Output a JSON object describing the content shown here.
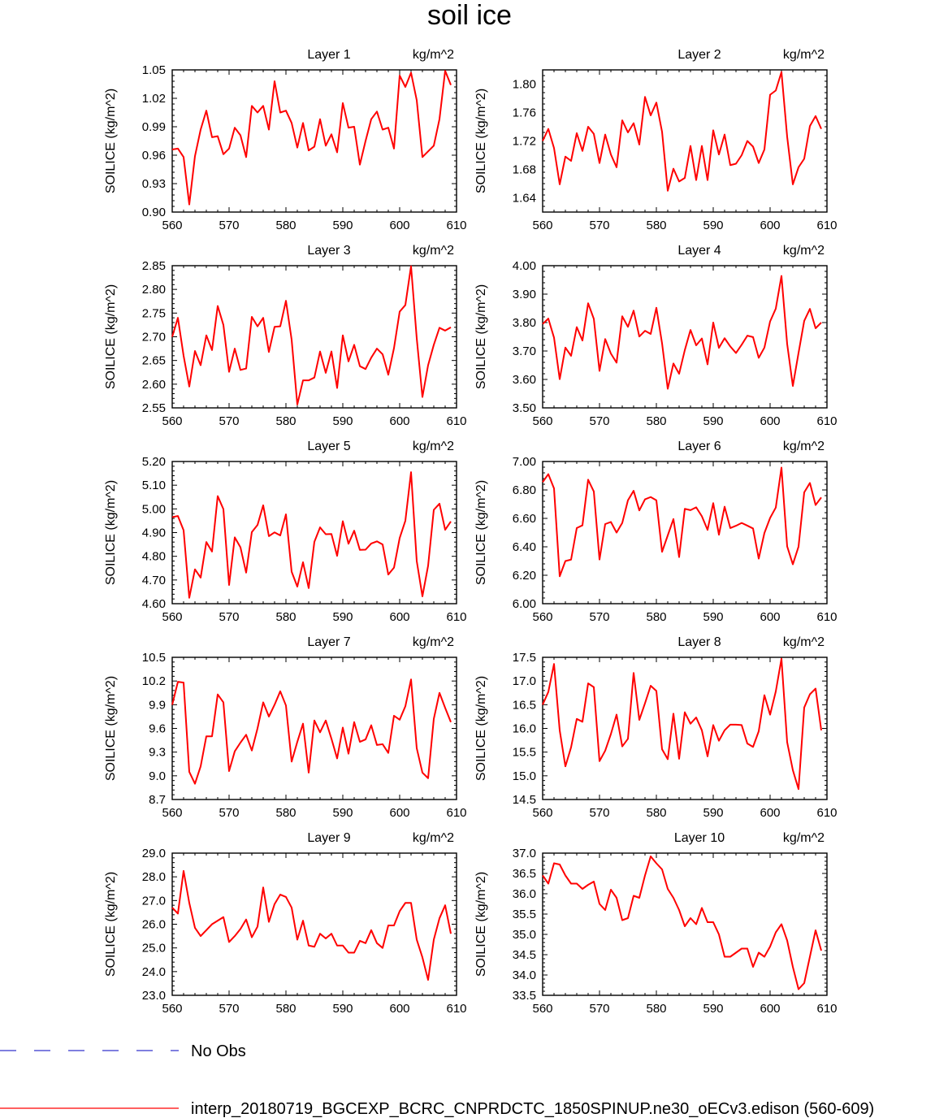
{
  "figure": {
    "title": "soil ice",
    "ylabel": "SOILICE  (kg/m^2)",
    "unit": "kg/m^2"
  },
  "legend": {
    "entries": [
      {
        "label": "No Obs",
        "color": "#3333cc",
        "style": "dashed"
      },
      {
        "label": "interp_20180719_BGCEXP_BCRC_CNPRDCTC_1850SPINUP.ne30_oECv3.edison (560-609)",
        "color": "#ff0000",
        "style": "solid"
      }
    ]
  },
  "chart_data": [
    {
      "type": "line",
      "title": "Layer 1",
      "unit": "kg/m^2",
      "ylabel": "SOILICE  (kg/m^2)",
      "x_start": 560,
      "xlim": [
        560,
        610
      ],
      "xticks": [
        560,
        570,
        580,
        590,
        600,
        610
      ],
      "ylim": [
        0.9,
        1.05
      ],
      "yticks": [
        0.9,
        0.93,
        0.96,
        0.99,
        1.02,
        1.05
      ],
      "ytick_decimals": 2,
      "series": [
        {
          "color": "#ff0000",
          "values": [
            0.966,
            0.967,
            0.958,
            0.908,
            0.959,
            0.987,
            1.007,
            0.979,
            0.98,
            0.961,
            0.967,
            0.989,
            0.981,
            0.958,
            1.012,
            1.005,
            1.012,
            0.987,
            1.038,
            1.005,
            1.007,
            0.994,
            0.968,
            0.994,
            0.965,
            0.969,
            0.998,
            0.97,
            0.982,
            0.963,
            1.015,
            0.989,
            0.99,
            0.95,
            0.975,
            0.998,
            1.006,
            0.987,
            0.989,
            0.967,
            1.044,
            1.032,
            1.047,
            1.018,
            0.958,
            0.964,
            0.97,
            0.998,
            1.049,
            1.034
          ]
        }
      ]
    },
    {
      "type": "line",
      "title": "Layer 2",
      "unit": "kg/m^2",
      "ylabel": "SOILICE  (kg/m^2)",
      "x_start": 560,
      "xlim": [
        560,
        610
      ],
      "xticks": [
        560,
        570,
        580,
        590,
        600,
        610
      ],
      "ylim": [
        1.62,
        1.82
      ],
      "yticks": [
        1.64,
        1.68,
        1.72,
        1.76,
        1.8
      ],
      "ytick_decimals": 2,
      "series": [
        {
          "color": "#ff0000",
          "values": [
            1.72,
            1.737,
            1.71,
            1.659,
            1.698,
            1.692,
            1.731,
            1.706,
            1.74,
            1.73,
            1.689,
            1.729,
            1.701,
            1.683,
            1.749,
            1.732,
            1.745,
            1.715,
            1.782,
            1.756,
            1.774,
            1.733,
            1.65,
            1.681,
            1.663,
            1.668,
            1.713,
            1.665,
            1.713,
            1.665,
            1.735,
            1.701,
            1.729,
            1.686,
            1.688,
            1.7,
            1.72,
            1.712,
            1.689,
            1.708,
            1.785,
            1.791,
            1.817,
            1.726,
            1.659,
            1.683,
            1.695,
            1.741,
            1.755,
            1.737
          ]
        }
      ]
    },
    {
      "type": "line",
      "title": "Layer 3",
      "unit": "kg/m^2",
      "ylabel": "SOILICE  (kg/m^2)",
      "x_start": 560,
      "xlim": [
        560,
        610
      ],
      "xticks": [
        560,
        570,
        580,
        590,
        600,
        610
      ],
      "ylim": [
        2.55,
        2.85
      ],
      "yticks": [
        2.55,
        2.6,
        2.65,
        2.7,
        2.75,
        2.8,
        2.85
      ],
      "ytick_decimals": 2,
      "series": [
        {
          "color": "#ff0000",
          "values": [
            2.7,
            2.74,
            2.66,
            2.595,
            2.67,
            2.64,
            2.703,
            2.672,
            2.765,
            2.725,
            2.626,
            2.675,
            2.63,
            2.633,
            2.742,
            2.722,
            2.74,
            2.668,
            2.721,
            2.722,
            2.776,
            2.694,
            2.557,
            2.608,
            2.608,
            2.614,
            2.669,
            2.624,
            2.669,
            2.592,
            2.703,
            2.648,
            2.683,
            2.638,
            2.632,
            2.656,
            2.675,
            2.663,
            2.62,
            2.676,
            2.753,
            2.767,
            2.849,
            2.697,
            2.573,
            2.64,
            2.683,
            2.719,
            2.713,
            2.72
          ]
        }
      ]
    },
    {
      "type": "line",
      "title": "Layer 4",
      "unit": "kg/m^2",
      "ylabel": "SOILICE  (kg/m^2)",
      "x_start": 560,
      "xlim": [
        560,
        610
      ],
      "xticks": [
        560,
        570,
        580,
        590,
        600,
        610
      ],
      "ylim": [
        3.5,
        4.0
      ],
      "yticks": [
        3.5,
        3.6,
        3.7,
        3.8,
        3.9,
        4.0
      ],
      "ytick_decimals": 2,
      "series": [
        {
          "color": "#ff0000",
          "values": [
            3.795,
            3.814,
            3.747,
            3.601,
            3.712,
            3.683,
            3.784,
            3.737,
            3.868,
            3.813,
            3.63,
            3.742,
            3.691,
            3.659,
            3.822,
            3.785,
            3.842,
            3.751,
            3.771,
            3.76,
            3.852,
            3.727,
            3.567,
            3.656,
            3.62,
            3.703,
            3.774,
            3.72,
            3.744,
            3.653,
            3.8,
            3.711,
            3.745,
            3.716,
            3.693,
            3.722,
            3.754,
            3.749,
            3.676,
            3.712,
            3.804,
            3.849,
            3.964,
            3.725,
            3.577,
            3.693,
            3.806,
            3.848,
            3.78,
            3.8
          ]
        }
      ]
    },
    {
      "type": "line",
      "title": "Layer 5",
      "unit": "kg/m^2",
      "ylabel": "SOILICE  (kg/m^2)",
      "x_start": 560,
      "xlim": [
        560,
        610
      ],
      "xticks": [
        560,
        570,
        580,
        590,
        600,
        610
      ],
      "ylim": [
        4.6,
        5.2
      ],
      "yticks": [
        4.6,
        4.7,
        4.8,
        4.9,
        5.0,
        5.1,
        5.2
      ],
      "ytick_decimals": 2,
      "series": [
        {
          "color": "#ff0000",
          "values": [
            4.965,
            4.97,
            4.91,
            4.625,
            4.745,
            4.71,
            4.86,
            4.82,
            5.054,
            4.999,
            4.679,
            4.88,
            4.838,
            4.731,
            4.902,
            4.932,
            5.015,
            4.885,
            4.901,
            4.888,
            4.977,
            4.735,
            4.672,
            4.775,
            4.666,
            4.861,
            4.922,
            4.893,
            4.894,
            4.802,
            4.948,
            4.853,
            4.908,
            4.827,
            4.828,
            4.854,
            4.863,
            4.85,
            4.723,
            4.752,
            4.877,
            4.95,
            5.155,
            4.78,
            4.631,
            4.76,
            4.996,
            5.022,
            4.912,
            4.947
          ]
        }
      ]
    },
    {
      "type": "line",
      "title": "Layer 6",
      "unit": "kg/m^2",
      "ylabel": "SOILICE  (kg/m^2)",
      "x_start": 560,
      "xlim": [
        560,
        610
      ],
      "xticks": [
        560,
        570,
        580,
        590,
        600,
        610
      ],
      "ylim": [
        6.0,
        7.0
      ],
      "yticks": [
        6.0,
        6.2,
        6.4,
        6.6,
        6.8,
        7.0
      ],
      "ytick_decimals": 2,
      "series": [
        {
          "color": "#ff0000",
          "values": [
            6.855,
            6.911,
            6.811,
            6.193,
            6.3,
            6.31,
            6.532,
            6.551,
            6.872,
            6.789,
            6.311,
            6.56,
            6.575,
            6.5,
            6.568,
            6.727,
            6.794,
            6.656,
            6.734,
            6.75,
            6.727,
            6.365,
            6.48,
            6.595,
            6.328,
            6.667,
            6.658,
            6.678,
            6.615,
            6.519,
            6.707,
            6.485,
            6.682,
            6.532,
            6.548,
            6.568,
            6.549,
            6.529,
            6.317,
            6.497,
            6.603,
            6.676,
            6.957,
            6.403,
            6.277,
            6.401,
            6.783,
            6.849,
            6.694,
            6.747
          ]
        }
      ]
    },
    {
      "type": "line",
      "title": "Layer 7",
      "unit": "kg/m^2",
      "ylabel": "SOILICE  (kg/m^2)",
      "x_start": 560,
      "xlim": [
        560,
        610
      ],
      "xticks": [
        560,
        570,
        580,
        590,
        600,
        610
      ],
      "ylim": [
        8.7,
        10.5
      ],
      "yticks": [
        8.7,
        9.0,
        9.3,
        9.6,
        9.9,
        10.2,
        10.5
      ],
      "ytick_decimals": 1,
      "series": [
        {
          "color": "#ff0000",
          "values": [
            9.9,
            10.19,
            10.18,
            9.05,
            8.9,
            9.12,
            9.5,
            9.5,
            10.03,
            9.93,
            9.06,
            9.31,
            9.42,
            9.52,
            9.32,
            9.6,
            9.93,
            9.75,
            9.9,
            10.07,
            9.89,
            9.18,
            9.43,
            9.66,
            9.04,
            9.7,
            9.55,
            9.7,
            9.47,
            9.22,
            9.61,
            9.28,
            9.68,
            9.43,
            9.46,
            9.64,
            9.39,
            9.4,
            9.29,
            9.76,
            9.71,
            9.88,
            10.22,
            9.35,
            9.04,
            8.97,
            9.72,
            10.05,
            9.86,
            9.68
          ]
        }
      ]
    },
    {
      "type": "line",
      "title": "Layer 8",
      "unit": "kg/m^2",
      "ylabel": "SOILICE  (kg/m^2)",
      "x_start": 560,
      "xlim": [
        560,
        610
      ],
      "xticks": [
        560,
        570,
        580,
        590,
        600,
        610
      ],
      "ylim": [
        14.5,
        17.5
      ],
      "yticks": [
        14.5,
        15.0,
        15.5,
        16.0,
        16.5,
        17.0,
        17.5
      ],
      "ytick_decimals": 1,
      "series": [
        {
          "color": "#ff0000",
          "values": [
            16.5,
            16.77,
            17.36,
            15.96,
            15.2,
            15.6,
            16.2,
            16.14,
            16.95,
            16.87,
            15.31,
            15.53,
            15.88,
            16.29,
            15.62,
            15.78,
            17.17,
            16.18,
            16.53,
            16.9,
            16.79,
            15.56,
            15.35,
            16.31,
            15.36,
            16.34,
            16.1,
            16.23,
            15.96,
            15.41,
            16.07,
            15.74,
            15.96,
            16.08,
            16.08,
            16.07,
            15.68,
            15.61,
            15.94,
            16.7,
            16.29,
            16.78,
            17.47,
            15.71,
            15.12,
            14.72,
            16.44,
            16.72,
            16.84,
            15.96
          ]
        }
      ]
    },
    {
      "type": "line",
      "title": "Layer 9",
      "unit": "kg/m^2",
      "ylabel": "SOILICE  (kg/m^2)",
      "x_start": 560,
      "xlim": [
        560,
        610
      ],
      "xticks": [
        560,
        570,
        580,
        590,
        600,
        610
      ],
      "ylim": [
        23.0,
        29.0
      ],
      "yticks": [
        23.0,
        24.0,
        25.0,
        26.0,
        27.0,
        28.0,
        29.0
      ],
      "ytick_decimals": 1,
      "series": [
        {
          "color": "#ff0000",
          "values": [
            26.7,
            26.45,
            28.25,
            26.9,
            25.85,
            25.5,
            25.75,
            26.0,
            26.15,
            26.3,
            25.25,
            25.5,
            25.8,
            26.2,
            25.45,
            25.9,
            27.55,
            26.1,
            26.85,
            27.25,
            27.15,
            26.7,
            25.35,
            26.15,
            25.1,
            25.05,
            25.6,
            25.4,
            25.6,
            25.1,
            25.1,
            24.8,
            24.8,
            25.3,
            25.2,
            25.75,
            25.2,
            25.0,
            25.95,
            25.95,
            26.55,
            26.9,
            26.9,
            25.35,
            24.6,
            23.65,
            25.35,
            26.25,
            26.8,
            25.6
          ]
        }
      ]
    },
    {
      "type": "line",
      "title": "Layer 10",
      "unit": "kg/m^2",
      "ylabel": "SOILICE  (kg/m^2)",
      "x_start": 560,
      "xlim": [
        560,
        610
      ],
      "xticks": [
        560,
        570,
        580,
        590,
        600,
        610
      ],
      "ylim": [
        33.5,
        37.0
      ],
      "yticks": [
        33.5,
        34.0,
        34.5,
        35.0,
        35.5,
        36.0,
        36.5,
        37.0
      ],
      "ytick_decimals": 1,
      "series": [
        {
          "color": "#ff0000",
          "values": [
            36.45,
            36.25,
            36.75,
            36.72,
            36.45,
            36.25,
            36.25,
            36.12,
            36.22,
            36.3,
            35.75,
            35.6,
            36.1,
            35.9,
            35.35,
            35.4,
            35.95,
            35.9,
            36.45,
            36.92,
            36.75,
            36.6,
            36.12,
            35.9,
            35.6,
            35.2,
            35.4,
            35.25,
            35.65,
            35.3,
            35.3,
            35.0,
            34.45,
            34.45,
            34.55,
            34.65,
            34.65,
            34.2,
            34.55,
            34.45,
            34.7,
            35.05,
            35.25,
            34.85,
            34.2,
            33.65,
            33.8,
            34.45,
            35.1,
            34.6
          ]
        }
      ]
    }
  ]
}
